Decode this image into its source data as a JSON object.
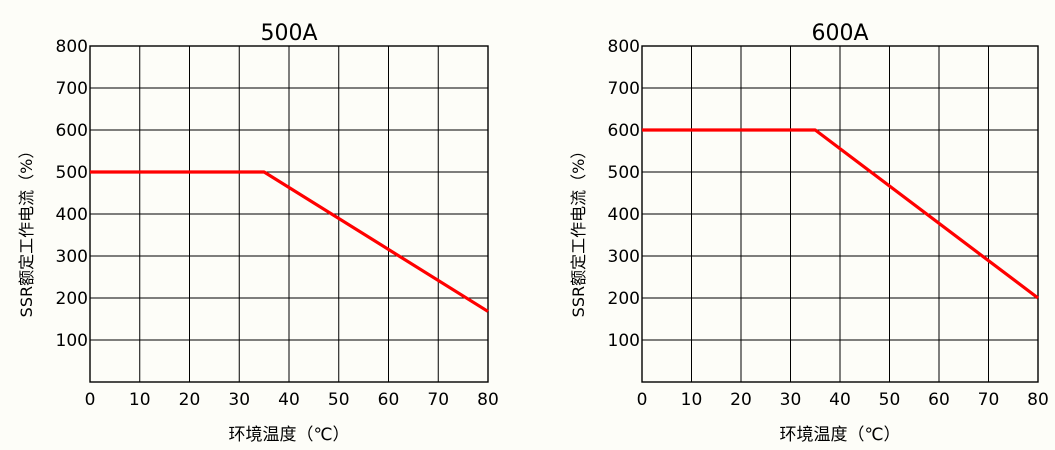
{
  "chart_data": [
    {
      "type": "line",
      "title": "500A",
      "xlabel": "环境温度（℃）",
      "ylabel": "SSR额定工作电流（%）",
      "xlim": [
        0,
        80
      ],
      "ylim": [
        0,
        800
      ],
      "x_ticks": [
        0,
        10,
        20,
        30,
        40,
        50,
        60,
        70,
        80
      ],
      "y_ticks": [
        100,
        200,
        300,
        400,
        500,
        600,
        700,
        800
      ],
      "grid": true,
      "line_color": "#ff0000",
      "series": [
        {
          "x": [
            0,
            35,
            80
          ],
          "y": [
            500,
            500,
            168
          ]
        }
      ]
    },
    {
      "type": "line",
      "title": "600A",
      "xlabel": "环境温度（℃）",
      "ylabel": "SSR额定工作电流（%）",
      "xlim": [
        0,
        80
      ],
      "ylim": [
        0,
        800
      ],
      "x_ticks": [
        0,
        10,
        20,
        30,
        40,
        50,
        60,
        70,
        80
      ],
      "y_ticks": [
        100,
        200,
        300,
        400,
        500,
        600,
        700,
        800
      ],
      "grid": true,
      "line_color": "#ff0000",
      "series": [
        {
          "x": [
            0,
            35,
            80
          ],
          "y": [
            600,
            600,
            200
          ]
        }
      ]
    }
  ]
}
